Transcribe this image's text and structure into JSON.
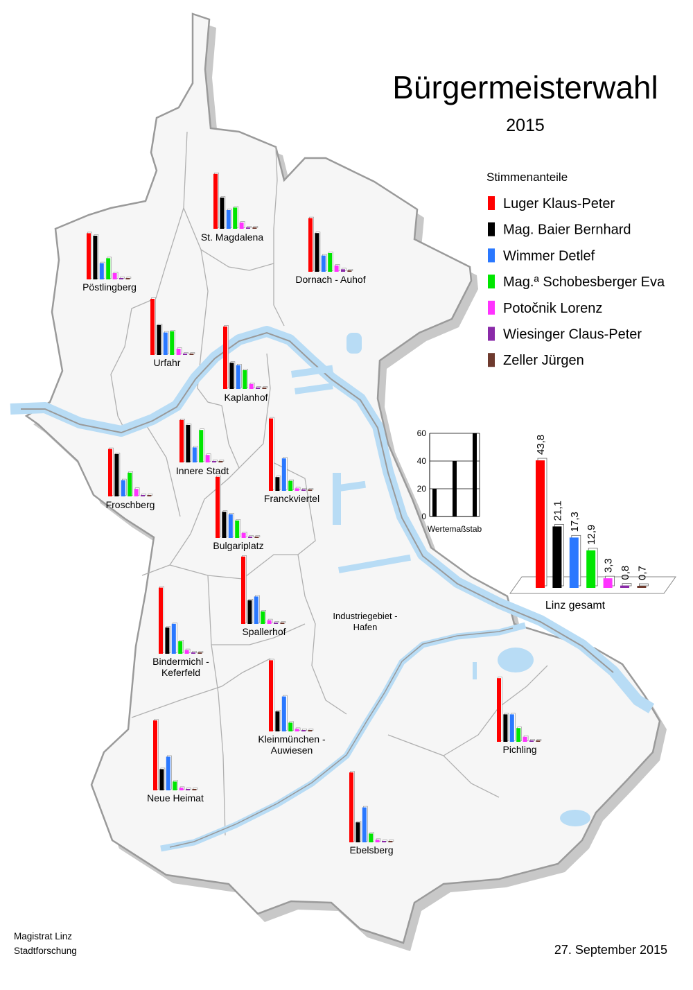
{
  "title": "Bürgermeisterwahl",
  "year": "2015",
  "legend": {
    "title": "Stimmenanteile",
    "items": [
      {
        "name": "Luger Klaus-Peter",
        "color": "#ff0000"
      },
      {
        "name": "Mag. Baier Bernhard",
        "color": "#000000"
      },
      {
        "name": "Wimmer Detlef",
        "color": "#2a78ff"
      },
      {
        "name": "Mag.ª Schobesberger Eva",
        "color": "#00e600"
      },
      {
        "name": "Potočnik Lorenz",
        "color": "#ff33ff"
      },
      {
        "name": "Wiesinger Claus-Peter",
        "color": "#8a2aa8"
      },
      {
        "name": "Zeller Jürgen",
        "color": "#6e3a2e"
      }
    ]
  },
  "scale": {
    "label": "Wertemaßstab",
    "ticks": [
      "0",
      "20",
      "40",
      "60"
    ],
    "values": [
      20,
      40,
      60
    ]
  },
  "districts": [
    {
      "name": "St. Magdalena",
      "values": [
        44,
        25,
        15,
        17,
        5,
        1,
        1
      ]
    },
    {
      "name": "Pöstlingberg",
      "values": [
        37,
        35,
        13,
        17,
        5,
        1,
        1
      ]
    },
    {
      "name": "Dornach - Auhof",
      "values": [
        43,
        31,
        13,
        15,
        5,
        2,
        1
      ]
    },
    {
      "name": "Urfahr",
      "values": [
        45,
        24,
        18,
        19,
        5,
        1,
        1
      ]
    },
    {
      "name": "Kaplanhof",
      "values": [
        50,
        21,
        19,
        15,
        4,
        1,
        1
      ]
    },
    {
      "name": "Innere Stadt",
      "values": [
        34,
        30,
        12,
        26,
        6,
        1,
        1
      ]
    },
    {
      "name": "Froschberg",
      "values": [
        38,
        34,
        13,
        19,
        6,
        1,
        1
      ]
    },
    {
      "name": "Franckviertel",
      "values": [
        58,
        11,
        26,
        8,
        2,
        1,
        1
      ]
    },
    {
      "name": "Bulgariplatz",
      "values": [
        49,
        21,
        19,
        14,
        4,
        1,
        1
      ]
    },
    {
      "name": "Bindermichl - Keferfeld",
      "values": [
        53,
        21,
        24,
        10,
        3,
        1,
        1
      ]
    },
    {
      "name": "Spallerhof",
      "values": [
        54,
        19,
        22,
        10,
        3,
        1,
        1
      ]
    },
    {
      "name": "Kleinmünchen - Auwiesen",
      "values": [
        57,
        16,
        28,
        7,
        2,
        1,
        1
      ]
    },
    {
      "name": "Neue Heimat",
      "values": [
        56,
        17,
        27,
        7,
        2,
        1,
        1
      ]
    },
    {
      "name": "Pichling",
      "values": [
        51,
        22,
        22,
        11,
        4,
        1,
        1
      ]
    },
    {
      "name": "Ebelsberg",
      "values": [
        56,
        16,
        28,
        7,
        2,
        1,
        1
      ]
    }
  ],
  "industrie_label": "Industriegebiet - Hafen",
  "gesamt": {
    "label": "Linz gesamt",
    "values": [
      43.8,
      21.1,
      17.3,
      12.9,
      3.3,
      0.8,
      0.7
    ],
    "value_labels": [
      "43,8",
      "21,1",
      "17,3",
      "12,9",
      "3,3",
      "0,8",
      "0,7"
    ]
  },
  "footer": {
    "org_line1": "Magistrat Linz",
    "org_line2": "Stadtforschung",
    "date": "27. September 2015"
  },
  "chart_data": {
    "type": "bar",
    "categories": [
      "Luger Klaus-Peter",
      "Mag. Baier Bernhard",
      "Wimmer Detlef",
      "Mag.ª Schobesberger Eva",
      "Potočnik Lorenz",
      "Wiesinger Claus-Peter",
      "Zeller Jürgen"
    ],
    "values": [
      43.8,
      21.1,
      17.3,
      12.9,
      3.3,
      0.8,
      0.7
    ],
    "title": "Linz gesamt"
  }
}
